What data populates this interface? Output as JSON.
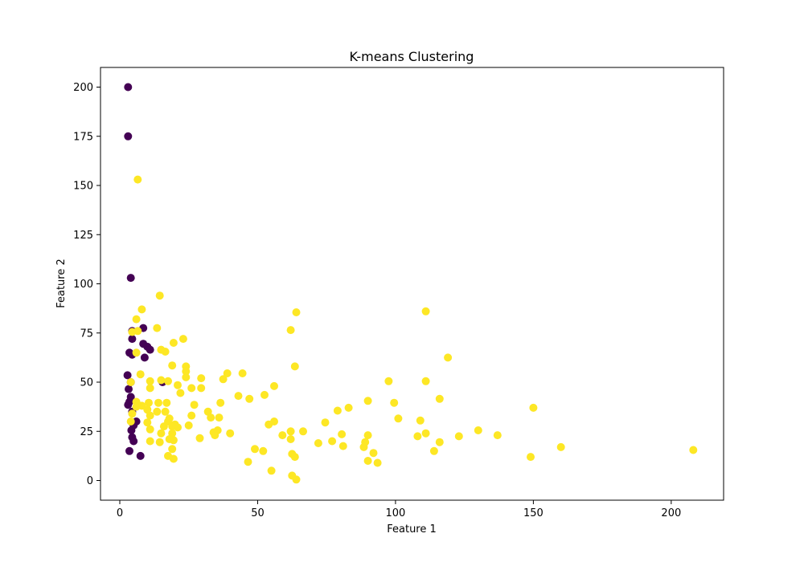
{
  "chart_data": {
    "type": "scatter",
    "title": "K-means Clustering",
    "xlabel": "Feature 1",
    "ylabel": "Feature 2",
    "xlim": [
      -7,
      219
    ],
    "ylim": [
      -10,
      210
    ],
    "xticks": [
      0,
      50,
      100,
      150,
      200
    ],
    "yticks": [
      0,
      25,
      50,
      75,
      100,
      125,
      150,
      175,
      200
    ],
    "grid": false,
    "legend": "none",
    "colors": {
      "cluster_0": "#440154",
      "cluster_1": "#fde725"
    },
    "series": [
      {
        "color": "#440154",
        "points": [
          [
            3,
            200
          ],
          [
            3,
            175
          ],
          [
            4,
            103
          ],
          [
            4.5,
            76
          ],
          [
            4.5,
            72
          ],
          [
            8.5,
            77.5
          ],
          [
            8.5,
            69.5
          ],
          [
            10,
            68
          ],
          [
            11,
            66.5
          ],
          [
            9,
            62.5
          ],
          [
            3.5,
            65
          ],
          [
            4.5,
            64
          ],
          [
            2.8,
            53.5
          ],
          [
            4,
            50
          ],
          [
            15.5,
            50
          ],
          [
            3.2,
            46.5
          ],
          [
            4,
            42.5
          ],
          [
            3.5,
            40
          ],
          [
            3,
            38.5
          ],
          [
            4.5,
            35
          ],
          [
            6,
            30
          ],
          [
            5,
            28
          ],
          [
            4.2,
            25.5
          ],
          [
            4.5,
            22
          ],
          [
            5,
            20
          ],
          [
            3.5,
            15
          ],
          [
            7.5,
            12.5
          ]
        ]
      },
      {
        "color": "#fde725",
        "points": [
          [
            6.5,
            153
          ],
          [
            14.5,
            94
          ],
          [
            8,
            87
          ],
          [
            6,
            82
          ],
          [
            13.5,
            77.5
          ],
          [
            6.5,
            76
          ],
          [
            4.5,
            75.5
          ],
          [
            23,
            72
          ],
          [
            19.5,
            70
          ],
          [
            15,
            66.5
          ],
          [
            16.5,
            65.5
          ],
          [
            6,
            65
          ],
          [
            19,
            58.5
          ],
          [
            24,
            58
          ],
          [
            24,
            55.5
          ],
          [
            24,
            52.5
          ],
          [
            7.5,
            54
          ],
          [
            15,
            51
          ],
          [
            11,
            50.5
          ],
          [
            17.5,
            50.5
          ],
          [
            29.5,
            52
          ],
          [
            21,
            48.5
          ],
          [
            11,
            47
          ],
          [
            26,
            47
          ],
          [
            29.5,
            47
          ],
          [
            22,
            44.5
          ],
          [
            4,
            50
          ],
          [
            6,
            40
          ],
          [
            14,
            39.5
          ],
          [
            10.5,
            39.5
          ],
          [
            17,
            39.5
          ],
          [
            27,
            38.5
          ],
          [
            8,
            38
          ],
          [
            10,
            36
          ],
          [
            13.5,
            35
          ],
          [
            16.5,
            35
          ],
          [
            4.5,
            34
          ],
          [
            11,
            33
          ],
          [
            26,
            33
          ],
          [
            18,
            31.5
          ],
          [
            17.5,
            30
          ],
          [
            10,
            29.5
          ],
          [
            20,
            28.5
          ],
          [
            19,
            27.5
          ],
          [
            16,
            27.5
          ],
          [
            25,
            28
          ],
          [
            21,
            27
          ],
          [
            11,
            26
          ],
          [
            15,
            24
          ],
          [
            19,
            24
          ],
          [
            29,
            21.5
          ],
          [
            18,
            21
          ],
          [
            19.5,
            20.5
          ],
          [
            14.5,
            19.5
          ],
          [
            11,
            20
          ],
          [
            19,
            16
          ],
          [
            17.5,
            12.5
          ],
          [
            19.5,
            11
          ],
          [
            4,
            30
          ],
          [
            6,
            37.5
          ],
          [
            37.5,
            51.5
          ],
          [
            39,
            54.5
          ],
          [
            44.5,
            54.5
          ],
          [
            56,
            48
          ],
          [
            43,
            43
          ],
          [
            47,
            41.5
          ],
          [
            36.5,
            39.5
          ],
          [
            52.5,
            43.5
          ],
          [
            32,
            35
          ],
          [
            33,
            32
          ],
          [
            36,
            32
          ],
          [
            56,
            30
          ],
          [
            54,
            28.5
          ],
          [
            34,
            24.5
          ],
          [
            35.5,
            25.5
          ],
          [
            40,
            24
          ],
          [
            34.5,
            23
          ],
          [
            59,
            23
          ],
          [
            62,
            21
          ],
          [
            62,
            25
          ],
          [
            49,
            16
          ],
          [
            52,
            15
          ],
          [
            46.5,
            9.5
          ],
          [
            55,
            5
          ],
          [
            62.5,
            2.5
          ],
          [
            64,
            0.5
          ],
          [
            62.5,
            13.5
          ],
          [
            63.5,
            12
          ],
          [
            62,
            76.5
          ],
          [
            64,
            85.5
          ],
          [
            63.5,
            58
          ],
          [
            66.5,
            25
          ],
          [
            72,
            19
          ],
          [
            74.5,
            29.5
          ],
          [
            77,
            20
          ],
          [
            79,
            35.5
          ],
          [
            80.5,
            23.5
          ],
          [
            81,
            17.5
          ],
          [
            83,
            37
          ],
          [
            88.5,
            17
          ],
          [
            89,
            19.5
          ],
          [
            90,
            23
          ],
          [
            90,
            40.5
          ],
          [
            90,
            10
          ],
          [
            92,
            14
          ],
          [
            93.5,
            9
          ],
          [
            97.5,
            50.5
          ],
          [
            99.5,
            39.5
          ],
          [
            101,
            31.5
          ],
          [
            108,
            22.5
          ],
          [
            109,
            30.5
          ],
          [
            111,
            24
          ],
          [
            111,
            86
          ],
          [
            111,
            50.5
          ],
          [
            114,
            15
          ],
          [
            116,
            41.5
          ],
          [
            116,
            19.5
          ],
          [
            119,
            62.5
          ],
          [
            123,
            22.5
          ],
          [
            130,
            25.5
          ],
          [
            137,
            23
          ],
          [
            149,
            12
          ],
          [
            150,
            37
          ],
          [
            160,
            17
          ],
          [
            208,
            15.5
          ]
        ]
      }
    ]
  }
}
